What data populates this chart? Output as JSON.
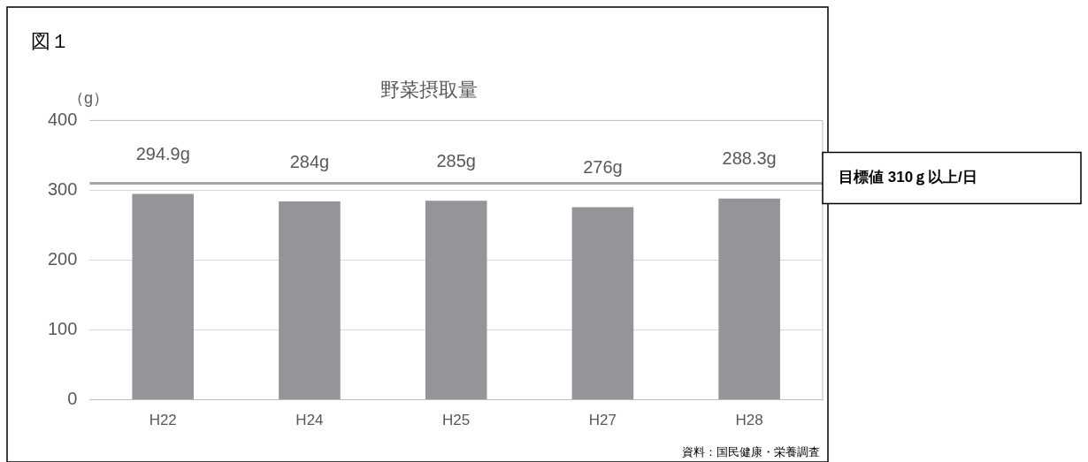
{
  "chart_data": {
    "type": "bar",
    "title": "野菜摂取量",
    "ylabel": "（g）",
    "categories": [
      "H22",
      "H24",
      "H25",
      "H27",
      "H28"
    ],
    "values": [
      294.9,
      284,
      285,
      276,
      288.3
    ],
    "value_labels": [
      "294.9g",
      "284g",
      "285g",
      "276g",
      "288.3g"
    ],
    "color": "#939598",
    "ylim": [
      0,
      400
    ],
    "yticks": [
      0,
      100,
      200,
      300,
      400
    ],
    "grid": "y",
    "legend": false,
    "ref_lines": [
      {
        "axis": "y",
        "value": 310,
        "label": "目標値 310ｇ以上/日",
        "color": "#a6a6a6"
      }
    ],
    "annotations": [
      "図１",
      "資料：国民健康・栄養調査"
    ]
  }
}
